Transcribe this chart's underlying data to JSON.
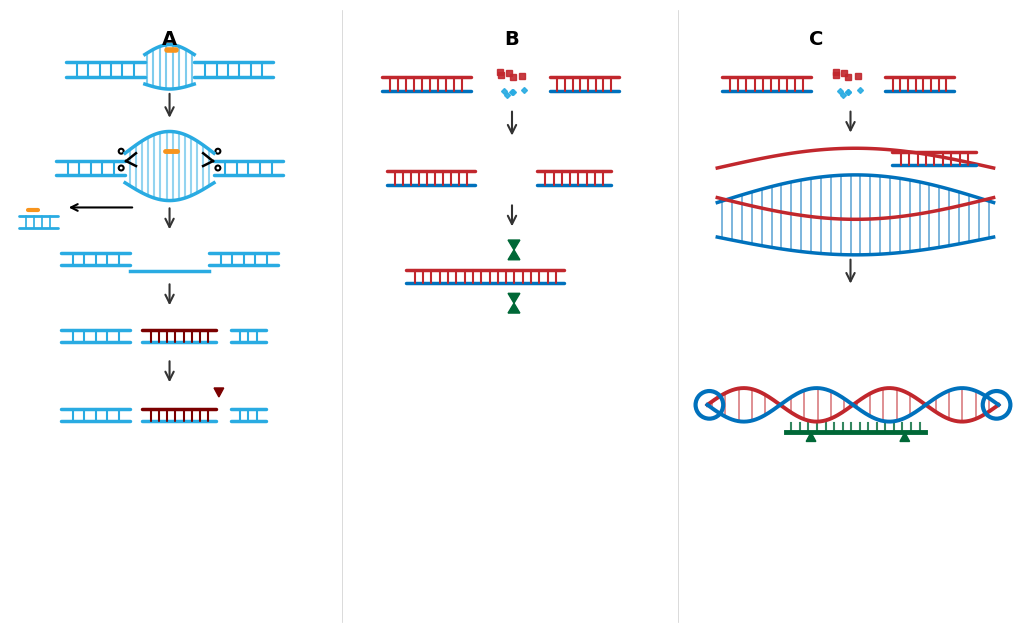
{
  "bg_color": "#ffffff",
  "cyan": "#29ABE2",
  "dark_blue": "#0071BC",
  "red": "#C1272D",
  "orange": "#F7941D",
  "green": "#006837",
  "dark_red": "#7B0000",
  "arrow_color": "#333333",
  "title_A": "A",
  "title_B": "B",
  "title_C": "C",
  "title_fontsize": 14,
  "title_fontweight": "bold"
}
